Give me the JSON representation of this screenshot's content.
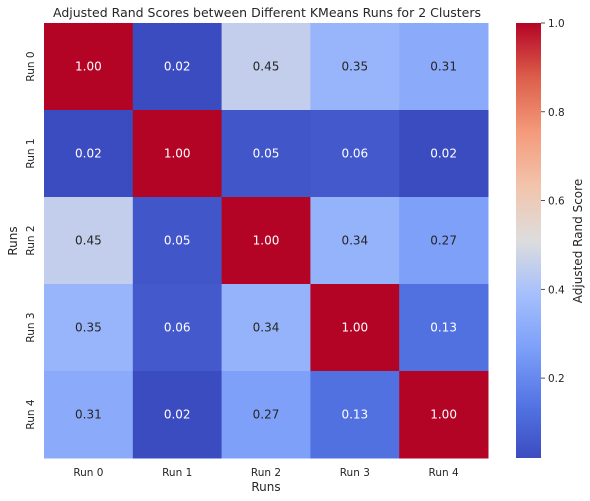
{
  "chart_data": {
    "type": "heatmap",
    "title": "Adjusted Rand Scores between Different KMeans Runs for 2 Clusters",
    "xlabel": "Runs",
    "ylabel": "Runs",
    "x_categories": [
      "Run 0",
      "Run 1",
      "Run 2",
      "Run 3",
      "Run 4"
    ],
    "y_categories": [
      "Run 0",
      "Run 1",
      "Run 2",
      "Run 3",
      "Run 4"
    ],
    "values": [
      [
        1.0,
        0.02,
        0.45,
        0.35,
        0.31
      ],
      [
        0.02,
        1.0,
        0.05,
        0.06,
        0.02
      ],
      [
        0.45,
        0.05,
        1.0,
        0.34,
        0.27
      ],
      [
        0.35,
        0.06,
        0.34,
        1.0,
        0.13
      ],
      [
        0.31,
        0.02,
        0.27,
        0.13,
        1.0
      ]
    ],
    "value_format": "0.00",
    "colormap": "coolwarm",
    "vmin": 0.02,
    "vmax": 1.0,
    "colorbar": {
      "label": "Adjusted Rand Score",
      "ticks": [
        0.2,
        0.4,
        0.6,
        0.8,
        1.0
      ],
      "tick_labels": [
        "0.2",
        "0.4",
        "0.6",
        "0.8",
        "1.0"
      ]
    }
  }
}
